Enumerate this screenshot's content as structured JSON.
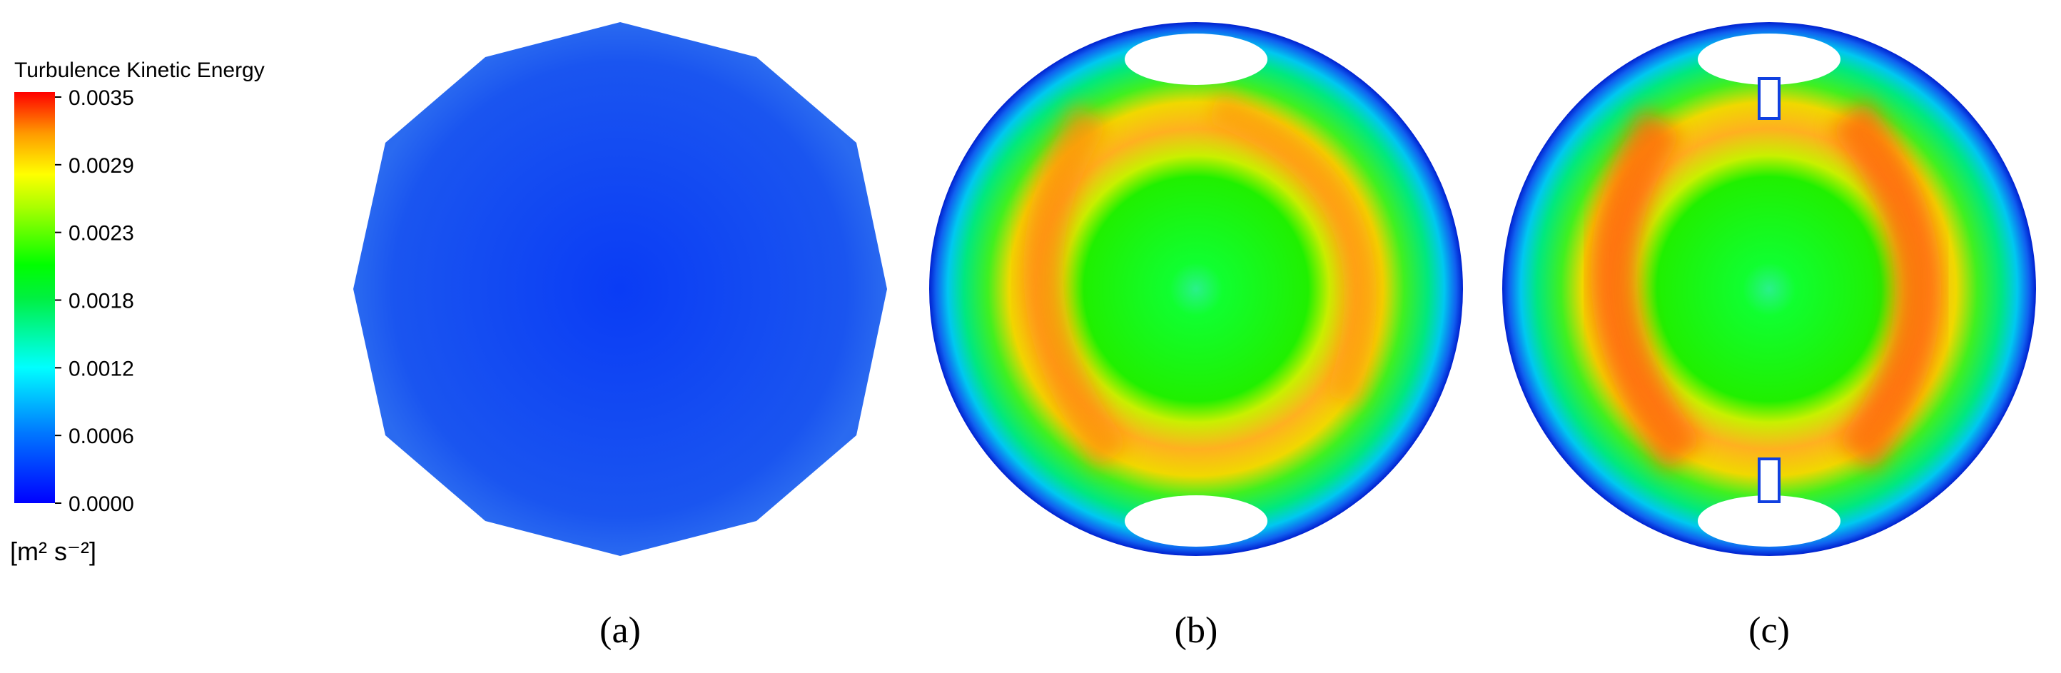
{
  "legend": {
    "title": "Turbulence Kinetic Energy",
    "ticks": [
      "0.0035",
      "0.0029",
      "0.0023",
      "0.0018",
      "0.0012",
      "0.0006",
      "0.0000"
    ],
    "unit": "[m² s⁻²]"
  },
  "panels": [
    {
      "label": "(a)"
    },
    {
      "label": "(b)"
    },
    {
      "label": "(c)"
    }
  ]
}
